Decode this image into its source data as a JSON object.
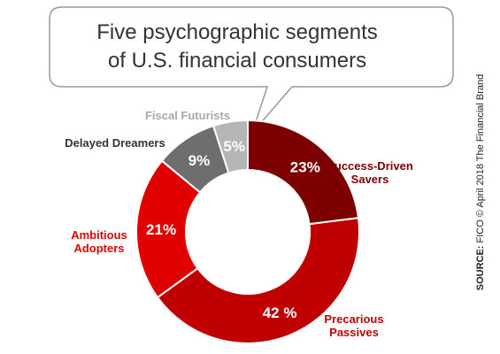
{
  "colors": {
    "dark_red": "#7c0000",
    "bright_red": "#e00000",
    "mid_red": "#c00000",
    "dark_gray": "#6e6e6e",
    "light_gray": "#b5b5b5",
    "segment_border": "#ffffff",
    "callout_border": "#999999"
  },
  "callout": {
    "title_line1": "Five psychographic segments",
    "title_line2": "of U.S. financial consumers"
  },
  "source": {
    "label": "SOURCE:",
    "text": "FICO © April 2018 The Financial Brand"
  },
  "chart_data": {
    "type": "pie",
    "donut": true,
    "title": "Five psychographic segments of U.S. financial consumers",
    "unit": "%",
    "segments": [
      {
        "name": "Success-Driven Savers",
        "label_lines": [
          "Success-Driven",
          "Savers"
        ],
        "value": 23,
        "value_label": "23%",
        "color": "#7c0000",
        "label_color": "#7c0000"
      },
      {
        "name": "Precarious Passives",
        "label_lines": [
          "Precarious",
          "Passives"
        ],
        "value": 42,
        "value_label": "42 %",
        "color": "#c00000",
        "label_color": "#c00000"
      },
      {
        "name": "Ambitious Adopters",
        "label_lines": [
          "Ambitious",
          "Adopters"
        ],
        "value": 21,
        "value_label": "21%",
        "color": "#e00000",
        "label_color": "#e00000"
      },
      {
        "name": "Delayed Dreamers",
        "label_lines": [
          "Delayed Dreamers"
        ],
        "value": 9,
        "value_label": "9%",
        "color": "#6e6e6e",
        "label_color": "#333333"
      },
      {
        "name": "Fiscal Futurists",
        "label_lines": [
          "Fiscal Futurists"
        ],
        "value": 5,
        "value_label": "5%",
        "color": "#b5b5b5",
        "label_color": "#a8a8a8"
      }
    ]
  }
}
